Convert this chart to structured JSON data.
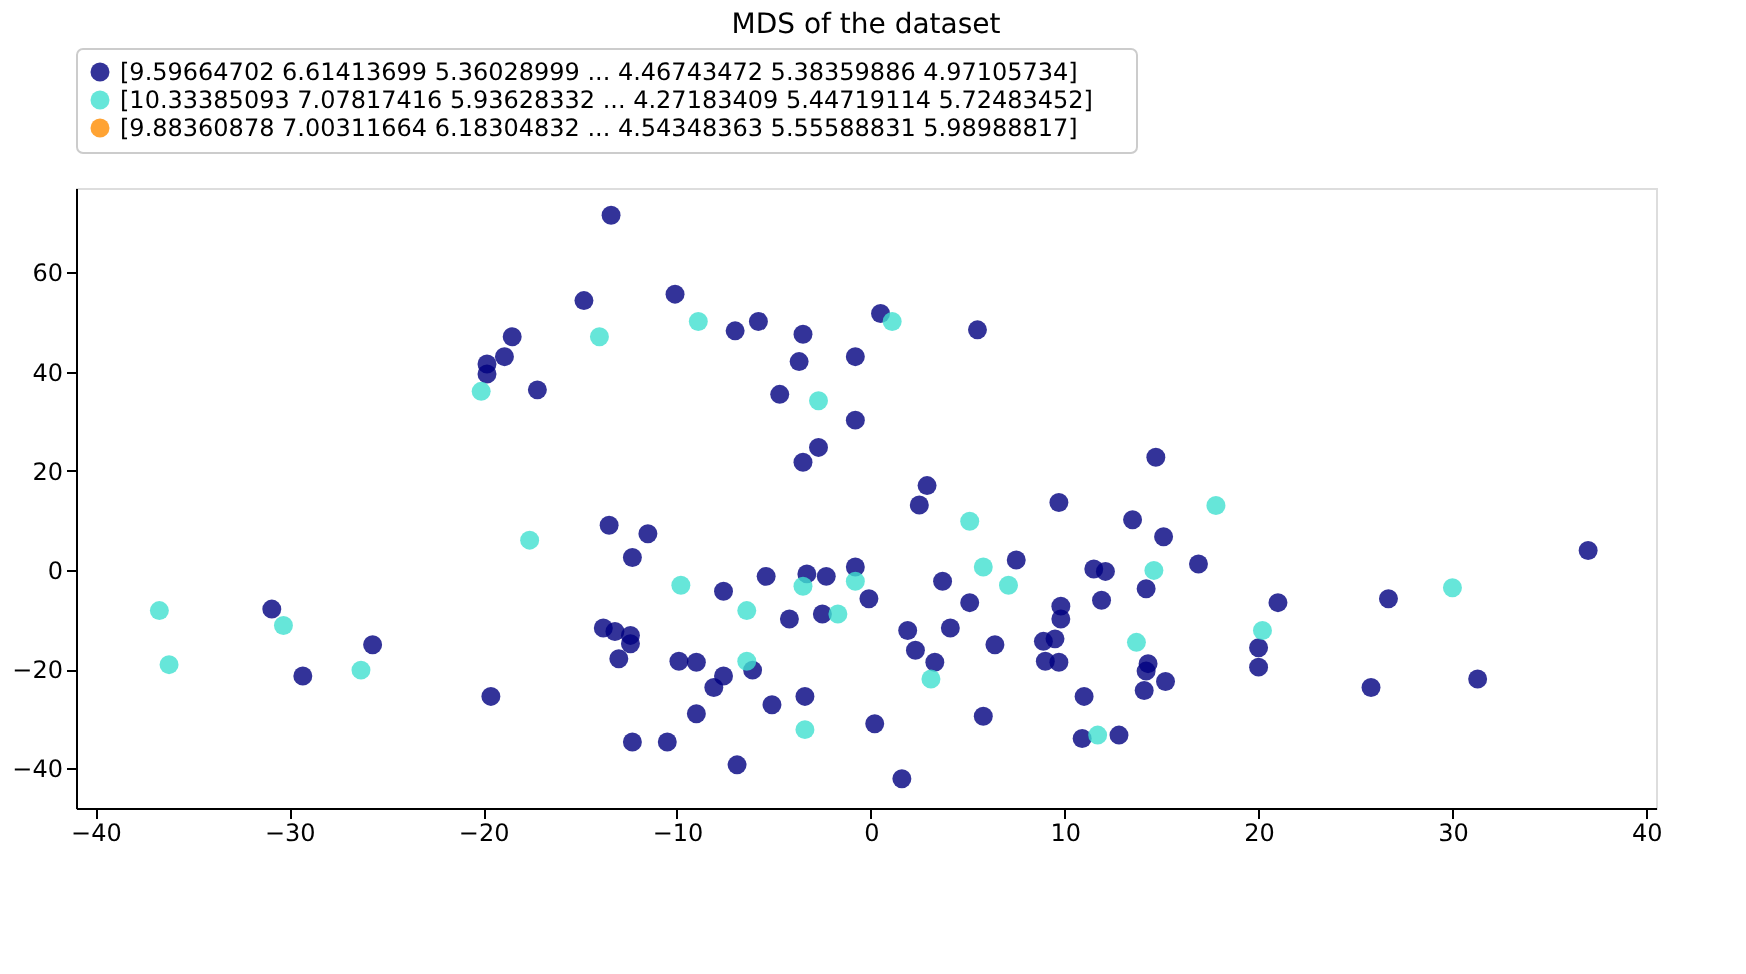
{
  "chart_data": {
    "type": "scatter",
    "title": "MDS of the dataset",
    "xlim": [
      -41,
      40.5
    ],
    "ylim": [
      -48,
      77
    ],
    "xticks": [
      -40,
      -30,
      -20,
      -10,
      0,
      10,
      20,
      30,
      40
    ],
    "yticks": [
      -40,
      -20,
      0,
      20,
      40,
      60
    ],
    "grid": false,
    "legend": "top",
    "marker": "circle",
    "series": [
      {
        "name": "[9.59664702 6.61413699 5.36028999 ... 4.46743472 5.38359886 4.97105734]",
        "color": "#000080",
        "x": [
          -13.4,
          -14.8,
          -10.1,
          -7.0,
          -5.8,
          -3.5,
          -3.7,
          -0.8,
          0.5,
          5.5,
          -18.5,
          -18.9,
          -19.8,
          -19.8,
          -17.2,
          -4.7,
          -0.8,
          -2.7,
          -3.5,
          -13.5,
          -11.5,
          -12.3,
          14.7,
          2.9,
          2.5,
          9.7,
          13.5,
          15.1,
          37.0,
          7.5,
          16.9,
          11.5,
          12.1,
          -0.8,
          -7.6,
          -5.4,
          -3.3,
          -2.3,
          -0.1,
          -4.2,
          -2.5,
          -30.9,
          -29.3,
          -25.7,
          -19.6,
          -13.8,
          -13.2,
          -12.4,
          -12.4,
          -13.0,
          -9.9,
          -9.0,
          -6.1,
          -7.6,
          -8.1,
          -5.1,
          -3.4,
          -9.0,
          -12.3,
          -10.5,
          -6.9,
          0.2,
          3.7,
          5.1,
          9.8,
          9.8,
          11.9,
          14.2,
          21.0,
          26.7,
          1.9,
          4.1,
          2.3,
          3.3,
          6.4,
          8.9,
          9.5,
          9.0,
          9.7,
          14.3,
          14.2,
          15.2,
          14.1,
          20.0,
          20.0,
          11.0,
          5.8,
          10.9,
          12.8,
          1.6,
          25.8,
          31.3
        ],
        "values": [
          71.5,
          54.3,
          55.6,
          48.2,
          50.1,
          47.5,
          42.0,
          43.0,
          51.7,
          48.4,
          47.0,
          43.0,
          41.5,
          39.5,
          36.3,
          35.4,
          30.2,
          24.7,
          21.7,
          9.0,
          7.3,
          2.5,
          22.7,
          17.0,
          13.1,
          13.6,
          10.1,
          6.7,
          3.9,
          2.0,
          1.2,
          0.2,
          -0.3,
          0.6,
          -4.3,
          -1.3,
          -0.8,
          -1.3,
          -5.8,
          -9.9,
          -8.9,
          -7.9,
          -21.4,
          -15.1,
          -25.5,
          -11.7,
          -12.4,
          -13.2,
          -14.9,
          -17.9,
          -18.4,
          -18.6,
          -20.2,
          -21.4,
          -23.7,
          -27.2,
          -25.5,
          -29.0,
          -34.7,
          -34.7,
          -39.3,
          -31.0,
          -2.3,
          -6.6,
          -7.3,
          -9.9,
          -6.1,
          -3.8,
          -6.6,
          -5.8,
          -12.2,
          -11.7,
          -16.2,
          -18.6,
          -15.1,
          -14.4,
          -13.9,
          -18.4,
          -18.6,
          -18.9,
          -20.4,
          -22.5,
          -24.3,
          -15.7,
          -19.6,
          -25.5,
          -29.5,
          -34.0,
          -33.3,
          -42.1,
          -23.7,
          -22.0
        ]
      },
      {
        "name": "[10.33385093  7.07817416  5.93628332 ...  4.27183409  5.44719114 5.72483452]",
        "color": "#40e0d0",
        "x": [
          -8.9,
          -14.0,
          1.1,
          -20.1,
          -2.7,
          -17.6,
          5.1,
          17.8,
          14.6,
          5.8,
          -9.8,
          -3.5,
          -0.8,
          -6.4,
          -1.7,
          -36.7,
          -30.3,
          -36.2,
          -26.3,
          -6.4,
          -3.4,
          7.1,
          30.0,
          3.1,
          13.7,
          20.2,
          11.7
        ],
        "values": [
          50.1,
          47.0,
          50.1,
          36.0,
          34.1,
          6.0,
          9.8,
          13.0,
          -0.1,
          0.6,
          -3.1,
          -3.3,
          -2.3,
          -8.2,
          -8.9,
          -8.2,
          -11.2,
          -19.1,
          -20.2,
          -18.4,
          -32.2,
          -3.1,
          -3.6,
          -22.0,
          -14.6,
          -12.2,
          -33.3
        ]
      },
      {
        "name": "[9.88360878 7.00311664 6.18304832 ... 4.54348363 5.55588831 5.98988817]",
        "color": "#ff8c00"
      }
    ]
  }
}
